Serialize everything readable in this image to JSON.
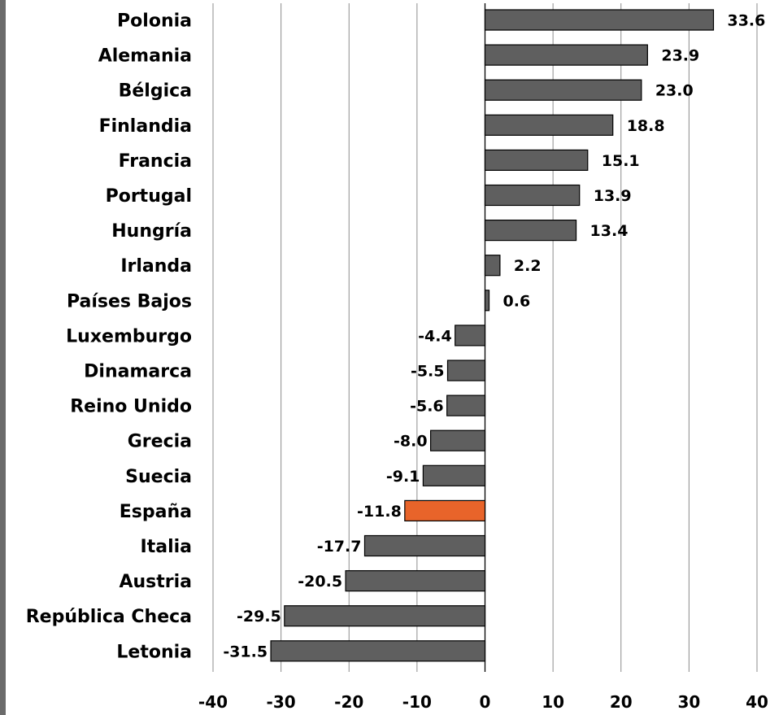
{
  "chart_data": {
    "type": "bar",
    "orientation": "horizontal",
    "categories": [
      "Polonia",
      "Alemania",
      "Bélgica",
      "Finlandia",
      "Francia",
      "Portugal",
      "Hungría",
      "Irlanda",
      "Países Bajos",
      "Luxemburgo",
      "Dinamarca",
      "Reino Unido",
      "Grecia",
      "Suecia",
      "España",
      "Italia",
      "Austria",
      "República Checa",
      "Letonia"
    ],
    "values": [
      33.6,
      23.9,
      23.0,
      18.8,
      15.1,
      13.9,
      13.4,
      2.2,
      0.6,
      -4.4,
      -5.5,
      -5.6,
      -8.0,
      -9.1,
      -11.8,
      -17.7,
      -20.5,
      -29.5,
      -31.5
    ],
    "value_labels": [
      "33.6",
      "23.9",
      "23.0",
      "18.8",
      "15.1",
      "13.9",
      "13.4",
      "2.2",
      "0.6",
      "-4.4",
      "-5.5",
      "-5.6",
      "-8.0",
      "-9.1",
      "-11.8",
      "-17.7",
      "-20.5",
      "-29.5",
      "-31.5"
    ],
    "highlight": "España",
    "title": "",
    "xlabel": "",
    "ylabel": "",
    "xlim": [
      -40,
      40
    ],
    "xticks": [
      -40,
      -30,
      -20,
      -10,
      0,
      10,
      20,
      30,
      40
    ],
    "xtick_labels": [
      "-40",
      "-30",
      "-20",
      "-10",
      "0",
      "10",
      "20",
      "30",
      "40"
    ],
    "grid": "vertical",
    "legend": "none",
    "colors": {
      "bar": "#5f5f5f",
      "highlight": "#e8642a",
      "bar_edge": "#000000",
      "grid": "#8c8c8c",
      "text": "#000000"
    }
  }
}
